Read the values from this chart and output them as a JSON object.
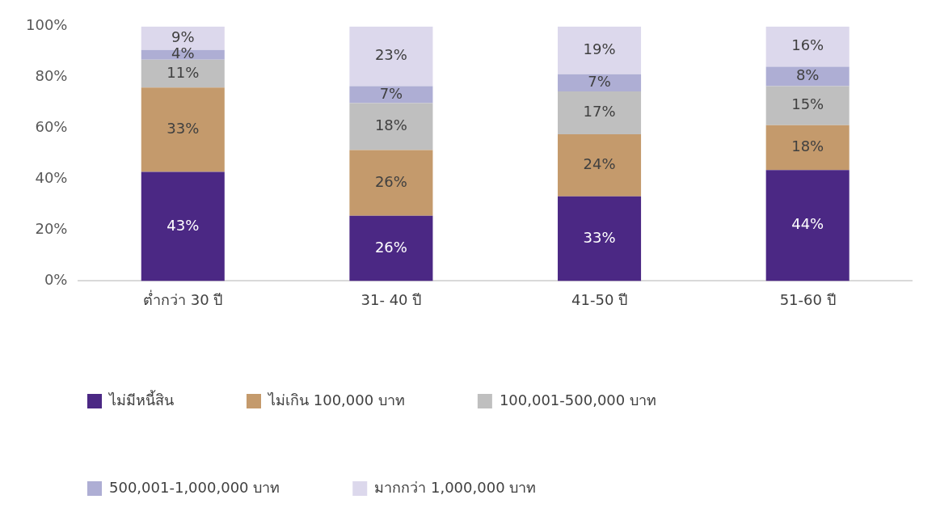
{
  "chart_data": {
    "type": "bar",
    "stacked": true,
    "categories": [
      "ต่ำกว่า 30 ปี",
      "31- 40 ปี",
      "41-50 ปี",
      "51-60 ปี"
    ],
    "series": [
      {
        "name": "ไม่มีหนี้สิน",
        "color": "#4b2884",
        "values": [
          42.9,
          25.6,
          33.3,
          43.6
        ],
        "value_labels": [
          "43%",
          "26%",
          "33%",
          "44%"
        ]
      },
      {
        "name": "ไม่เกิน 100,000 บาท",
        "color": "#c49a6c",
        "values": [
          33.1,
          25.9,
          24.4,
          17.6
        ],
        "value_labels": [
          "33%",
          "26%",
          "24%",
          "18%"
        ]
      },
      {
        "name": "100,001-500,000 บาท",
        "color": "#bfbfbf",
        "values": [
          11.0,
          18.4,
          16.8,
          15.4
        ],
        "value_labels": [
          "11%",
          "18%",
          "17%",
          "15%"
        ]
      },
      {
        "name": "500,001-1,000,000 บาท",
        "color": "#aeaed4",
        "values": [
          3.8,
          6.7,
          6.8,
          7.6
        ],
        "value_labels": [
          "4%",
          "7%",
          "7%",
          "8%"
        ]
      },
      {
        "name": "มากกว่า 1,000,000 บาท",
        "color": "#dcd8ec",
        "values": [
          9.2,
          23.4,
          18.7,
          15.8
        ],
        "value_labels": [
          "9%",
          "23%",
          "19%",
          "16%"
        ]
      }
    ],
    "ylim": [
      0,
      100
    ],
    "yticks": [
      {
        "value": 0,
        "label": "0%"
      },
      {
        "value": 20,
        "label": "20%"
      },
      {
        "value": 40,
        "label": "40%"
      },
      {
        "value": 60,
        "label": "60%"
      },
      {
        "value": 80,
        "label": "80%"
      },
      {
        "value": 100,
        "label": "100%"
      }
    ],
    "grid": false,
    "legend": "bottom"
  }
}
